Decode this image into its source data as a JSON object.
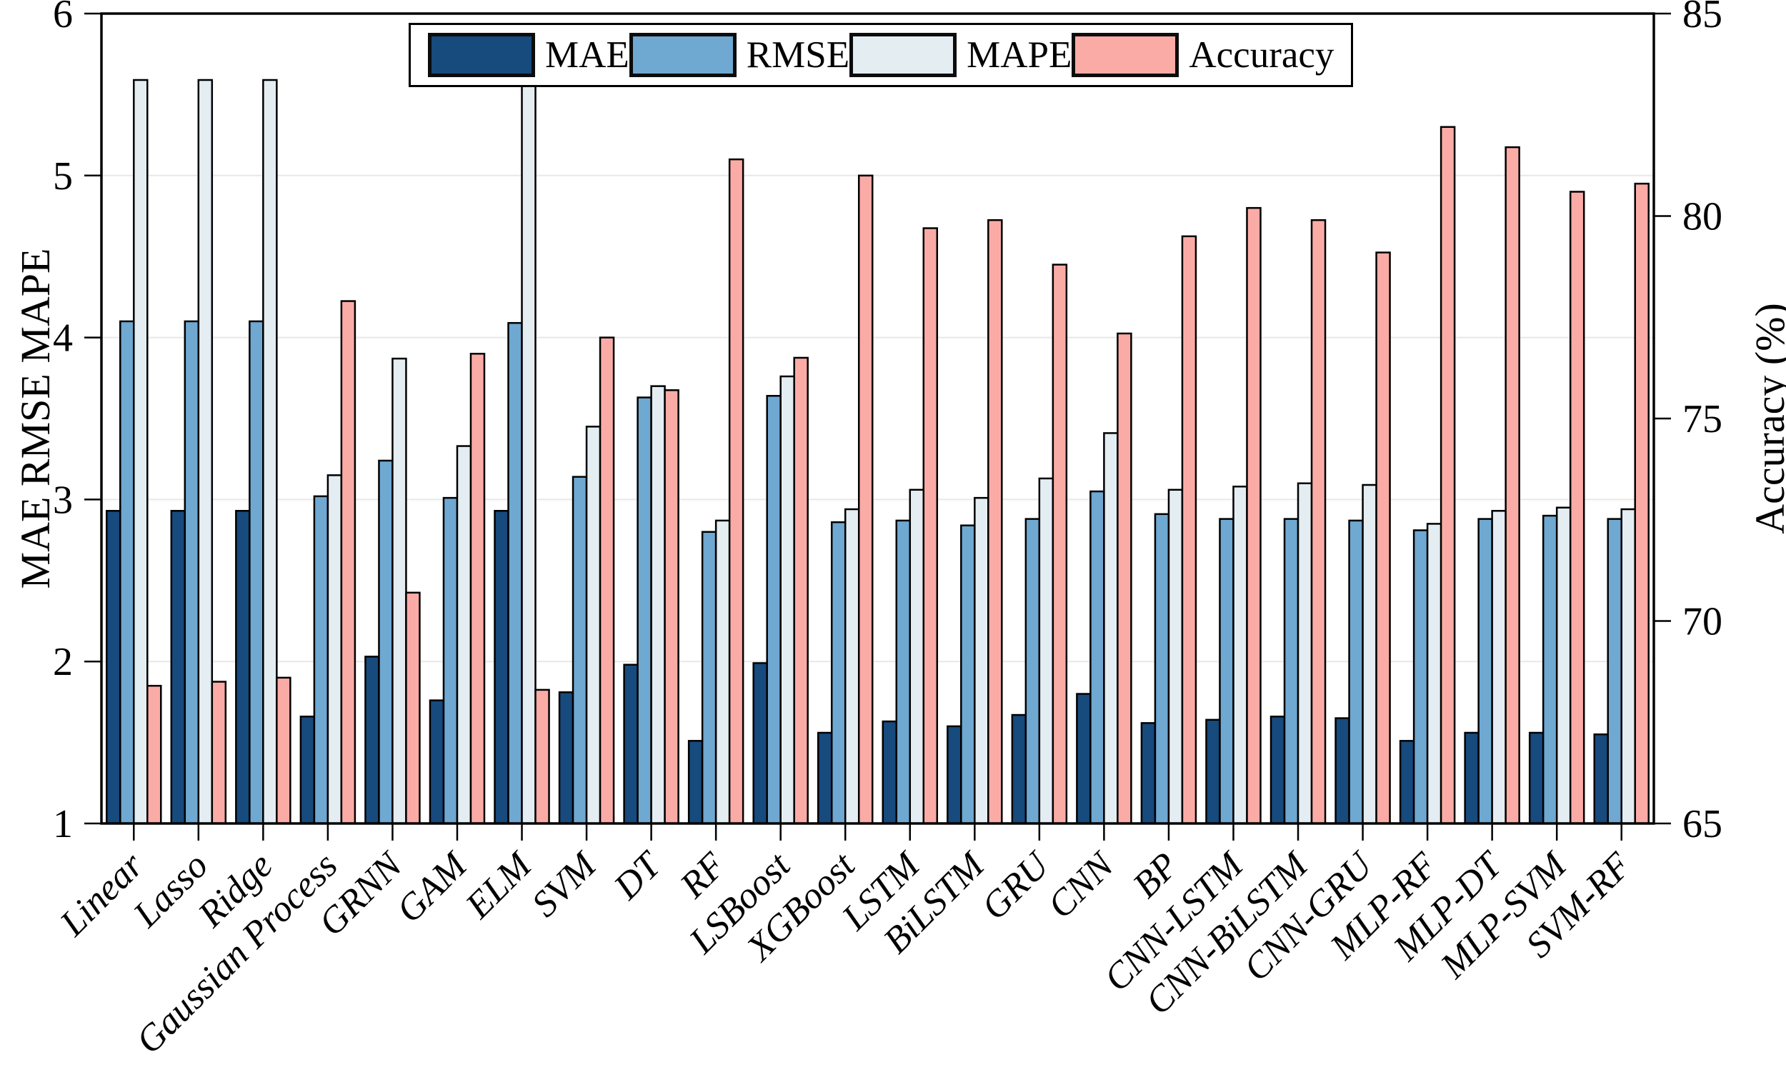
{
  "chart_data": {
    "type": "bar",
    "title": "",
    "categories": [
      "Linear",
      "Lasso",
      "Ridge",
      "Gaussian Process",
      "GRNN",
      "GAM",
      "ELM",
      "SVM",
      "DT",
      "RF",
      "LSBoost",
      "XGBoost",
      "LSTM",
      "BiLSTM",
      "GRU",
      "CNN",
      "BP",
      "CNN-LSTM",
      "CNN-BiLSTM",
      "CNN-GRU",
      "MLP-RF",
      "MLP-DT",
      "MLP-SVM",
      "SVM-RF"
    ],
    "series": [
      {
        "name": "MAE",
        "axis": "left",
        "color": "#174a7d",
        "values": [
          2.93,
          2.93,
          2.93,
          1.66,
          2.03,
          1.76,
          2.93,
          1.81,
          1.98,
          1.51,
          1.99,
          1.56,
          1.63,
          1.6,
          1.67,
          1.8,
          1.62,
          1.64,
          1.66,
          1.65,
          1.51,
          1.56,
          1.56,
          1.55
        ]
      },
      {
        "name": "RMSE",
        "axis": "left",
        "color": "#6fa8d1",
        "values": [
          4.1,
          4.1,
          4.1,
          3.02,
          3.24,
          3.01,
          4.09,
          3.14,
          3.63,
          2.8,
          3.64,
          2.86,
          2.87,
          2.84,
          2.88,
          3.05,
          2.91,
          2.88,
          2.88,
          2.87,
          2.81,
          2.88,
          2.9,
          2.88
        ]
      },
      {
        "name": "MAPE",
        "axis": "left",
        "color": "#e4edf2",
        "values": [
          5.59,
          5.59,
          5.59,
          3.15,
          3.87,
          3.33,
          5.58,
          3.45,
          3.7,
          2.87,
          3.76,
          2.94,
          3.06,
          3.01,
          3.13,
          3.41,
          3.06,
          3.08,
          3.1,
          3.09,
          2.85,
          2.93,
          2.95,
          2.94
        ]
      },
      {
        "name": "Accuracy",
        "axis": "right",
        "color": "#fbaba6",
        "values": [
          68.4,
          68.5,
          68.6,
          77.9,
          70.7,
          76.6,
          68.3,
          77.0,
          75.7,
          81.4,
          76.5,
          81.0,
          79.7,
          79.9,
          78.8,
          77.1,
          79.5,
          80.2,
          79.9,
          79.1,
          82.2,
          81.7,
          80.6,
          80.8
        ]
      }
    ],
    "left_axis": {
      "label": "MAE RMSE MAPE",
      "min": 1,
      "max": 6,
      "ticks": [
        1,
        2,
        3,
        4,
        5,
        6
      ]
    },
    "right_axis": {
      "label": "Accuracy (%)",
      "min": 65,
      "max": 85,
      "ticks": [
        65,
        70,
        75,
        80,
        85
      ]
    },
    "legend": {
      "position": "top-center",
      "entries": [
        "MAE",
        "RMSE",
        "MAPE",
        "Accuracy"
      ]
    },
    "style": {
      "frame_color": "#000000",
      "gridline_color": "#e8e8e8",
      "background": "#ffffff",
      "grid": "horizontal"
    }
  }
}
